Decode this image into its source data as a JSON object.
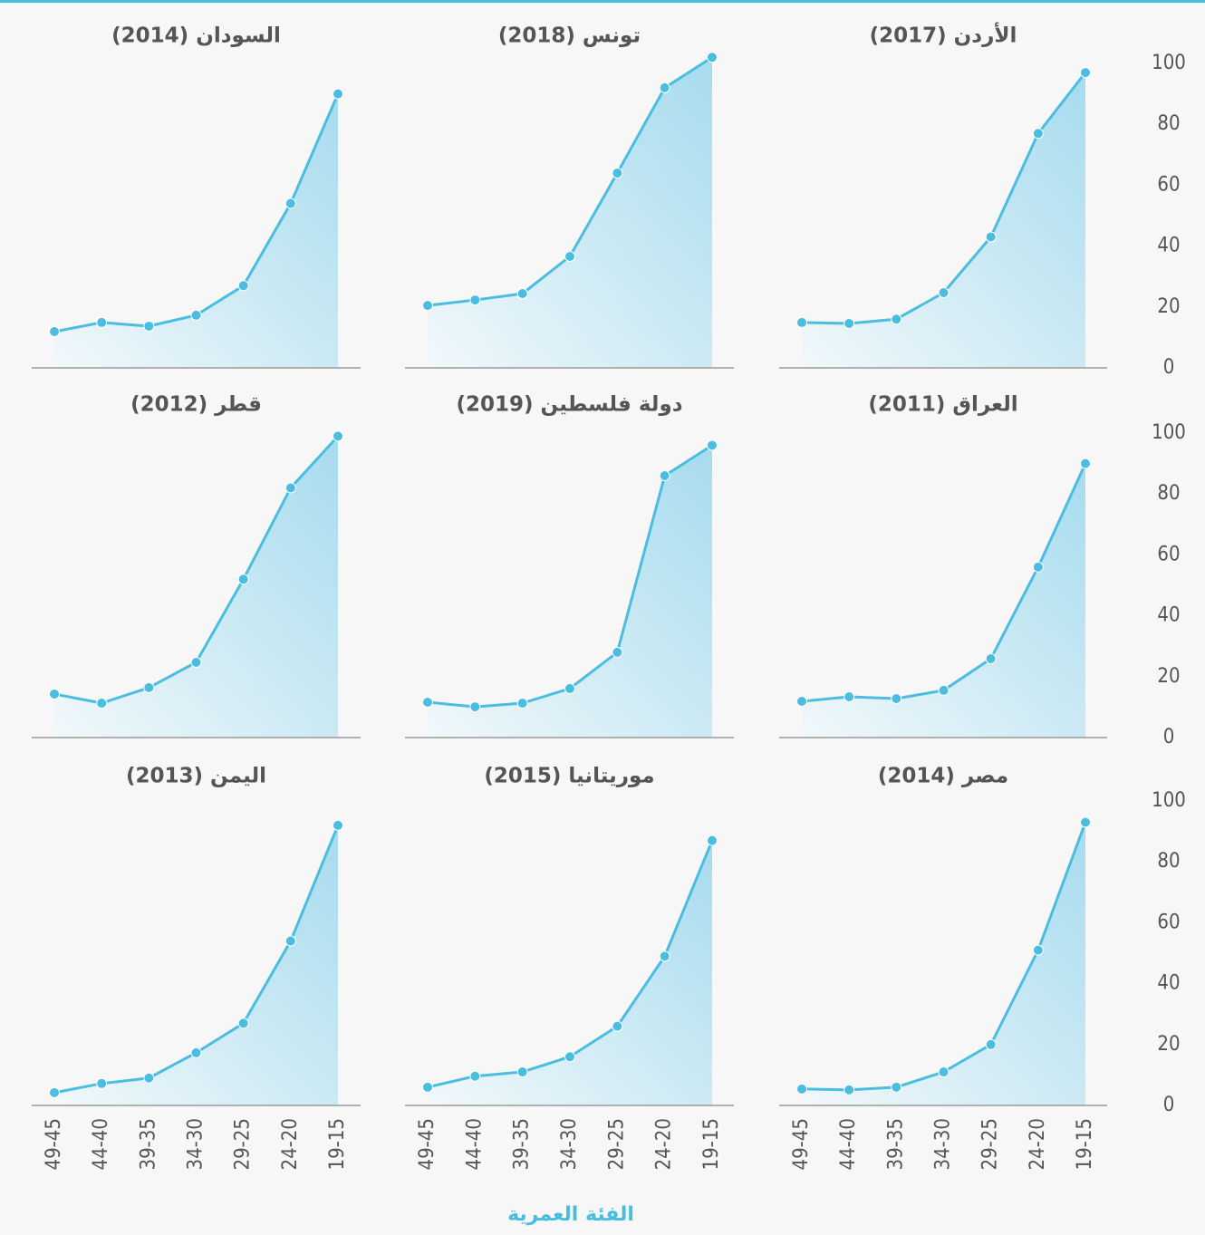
{
  "chart_data": [
    {
      "type": "line",
      "title": "الأردن (2017)",
      "values": [
        14.9,
        14.6,
        16,
        24.7,
        43,
        77,
        97
      ],
      "color": "#4bbde0",
      "ylim": [
        0,
        100
      ],
      "yticks": [
        0,
        20,
        40,
        60,
        80,
        100
      ]
    },
    {
      "type": "line",
      "title": "تونس (2018)",
      "values": [
        20.5,
        22.3,
        24.4,
        36.6,
        64,
        92,
        102
      ],
      "color": "#4bbde0",
      "ylim": [
        0,
        100
      ]
    },
    {
      "type": "line",
      "title": "السودان (2014)",
      "values": [
        11.9,
        14.9,
        13.7,
        17.3,
        27,
        54,
        90
      ],
      "color": "#4bbde0",
      "ylim": [
        0,
        100
      ]
    },
    {
      "type": "line",
      "title": "العراق (2011)",
      "values": [
        11.9,
        13.4,
        12.8,
        15.5,
        25.9,
        56,
        90
      ],
      "color": "#4bbde0",
      "ylim": [
        0,
        100
      ],
      "yticks": [
        0,
        20,
        40,
        60,
        80,
        100
      ]
    },
    {
      "type": "line",
      "title": "دولة فلسطين (2019)",
      "values": [
        11.6,
        10.1,
        11.3,
        16.1,
        28,
        86,
        96
      ],
      "color": "#4bbde0",
      "ylim": [
        0,
        100
      ]
    },
    {
      "type": "line",
      "title": "قطر (2012)",
      "values": [
        14.3,
        11.3,
        16.4,
        24.7,
        52,
        82,
        99
      ],
      "color": "#4bbde0",
      "ylim": [
        0,
        100
      ]
    },
    {
      "type": "line",
      "title": "مصر (2014)",
      "categories": [
        "49-45",
        "44-40",
        "39-35",
        "34-30",
        "29-25",
        "24-20",
        "19-15"
      ],
      "values": [
        5.4,
        5.1,
        6,
        11,
        20,
        51,
        93
      ],
      "color": "#4bbde0",
      "ylim": [
        0,
        100
      ],
      "yticks": [
        0,
        20,
        40,
        60,
        80,
        100
      ]
    },
    {
      "type": "line",
      "title": "موريتانيا (2015)",
      "categories": [
        "49-45",
        "44-40",
        "39-35",
        "34-30",
        "29-25",
        "24-20",
        "19-15"
      ],
      "values": [
        6,
        9.6,
        11,
        16,
        26,
        49,
        87
      ],
      "color": "#4bbde0",
      "ylim": [
        0,
        100
      ]
    },
    {
      "type": "line",
      "title": "اليمن (2013)",
      "categories": [
        "49-45",
        "44-40",
        "39-35",
        "34-30",
        "29-25",
        "24-20",
        "19-15"
      ],
      "values": [
        4.2,
        7.2,
        9,
        17.3,
        27,
        54,
        92
      ],
      "color": "#4bbde0",
      "ylim": [
        0,
        100
      ]
    }
  ],
  "xlabel": "الفئة العمرية"
}
